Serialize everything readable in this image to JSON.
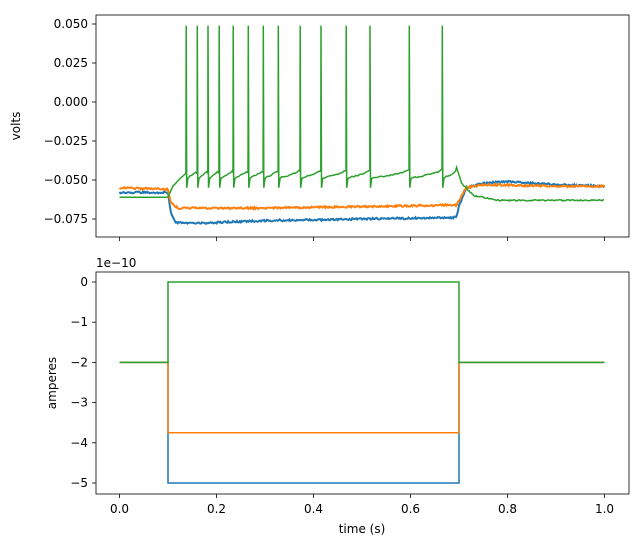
{
  "chart_data": [
    {
      "type": "line",
      "ylabel": "volts",
      "xlabel": "",
      "xlim": [
        -0.05,
        1.05
      ],
      "ylim": [
        -0.0865,
        0.0556
      ],
      "yticks": [
        "0.050",
        "0.025",
        "0.000",
        "−0.025",
        "−0.050",
        "−0.075"
      ],
      "ytick_values": [
        0.05,
        0.025,
        0.0,
        -0.025,
        -0.05,
        -0.075
      ],
      "grid": false,
      "series": [
        {
          "color": "#1f77b4",
          "points": [
            [
              0,
              -0.058
            ],
            [
              0.1,
              -0.058
            ],
            [
              0.105,
              -0.07
            ],
            [
              0.115,
              -0.077
            ],
            [
              0.14,
              -0.078
            ],
            [
              0.3,
              -0.076
            ],
            [
              0.5,
              -0.075
            ],
            [
              0.695,
              -0.074
            ],
            [
              0.7,
              -0.067
            ],
            [
              0.715,
              -0.055
            ],
            [
              0.75,
              -0.052
            ],
            [
              0.8,
              -0.051
            ],
            [
              0.9,
              -0.053
            ],
            [
              1.0,
              -0.054
            ]
          ]
        },
        {
          "color": "#ff7f0e",
          "points": [
            [
              0,
              -0.055
            ],
            [
              0.1,
              -0.056
            ],
            [
              0.105,
              -0.064
            ],
            [
              0.12,
              -0.068
            ],
            [
              0.3,
              -0.068
            ],
            [
              0.5,
              -0.067
            ],
            [
              0.695,
              -0.066
            ],
            [
              0.7,
              -0.063
            ],
            [
              0.715,
              -0.055
            ],
            [
              0.75,
              -0.053
            ],
            [
              0.9,
              -0.054
            ],
            [
              1.0,
              -0.054
            ]
          ]
        },
        {
          "color": "#2ca02c",
          "points": [
            [
              0,
              -0.061
            ],
            [
              0.1,
              -0.061
            ],
            [
              0.11,
              -0.054
            ],
            [
              0.125,
              -0.049
            ],
            [
              0.136,
              -0.046
            ],
            [
              0.665,
              -0.043
            ],
            [
              0.67,
              -0.048
            ],
            [
              0.695,
              -0.042
            ],
            [
              0.705,
              -0.052
            ],
            [
              0.73,
              -0.06
            ],
            [
              0.78,
              -0.063
            ],
            [
              1.0,
              -0.063
            ]
          ],
          "spike_times": [
            0.137,
            0.16,
            0.182,
            0.205,
            0.234,
            0.265,
            0.296,
            0.327,
            0.372,
            0.415,
            0.467,
            0.516,
            0.597,
            0.665
          ],
          "spike_peak": 0.049,
          "spike_trough": -0.055
        }
      ]
    },
    {
      "type": "line",
      "ylabel": "amperes",
      "xlabel": "time (s)",
      "offset_text": "1e−10",
      "xlim": [
        -0.05,
        1.05
      ],
      "ylim": [
        -5.25e-10,
        2.5e-11
      ],
      "xticks": [
        "0.0",
        "0.2",
        "0.4",
        "0.6",
        "0.8",
        "1.0"
      ],
      "xtick_values": [
        0,
        0.2,
        0.4,
        0.6,
        0.8,
        1.0
      ],
      "yticks": [
        "0",
        "−1",
        "−2",
        "−3",
        "−4",
        "−5"
      ],
      "ytick_values": [
        0,
        -1e-10,
        -2e-10,
        -3e-10,
        -4e-10,
        -5e-10
      ],
      "grid": false,
      "holding": -2e-10,
      "step_start": 0.1,
      "step_end": 0.7,
      "series": [
        {
          "color": "#1f77b4",
          "step_value": -5e-10
        },
        {
          "color": "#ff7f0e",
          "step_value": -3.75e-10
        },
        {
          "color": "#2ca02c",
          "step_value": 0
        }
      ]
    }
  ]
}
